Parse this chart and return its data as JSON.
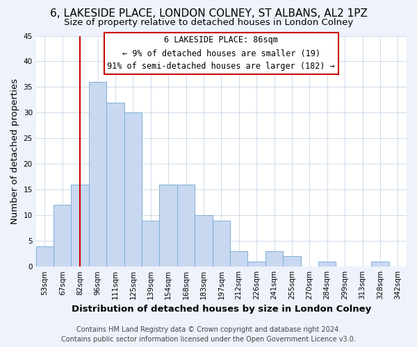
{
  "title": "6, LAKESIDE PLACE, LONDON COLNEY, ST ALBANS, AL2 1PZ",
  "subtitle": "Size of property relative to detached houses in London Colney",
  "xlabel": "Distribution of detached houses by size in London Colney",
  "ylabel": "Number of detached properties",
  "footer_lines": [
    "Contains HM Land Registry data © Crown copyright and database right 2024.",
    "Contains public sector information licensed under the Open Government Licence v3.0."
  ],
  "bin_labels": [
    "53sqm",
    "67sqm",
    "82sqm",
    "96sqm",
    "111sqm",
    "125sqm",
    "139sqm",
    "154sqm",
    "168sqm",
    "183sqm",
    "197sqm",
    "212sqm",
    "226sqm",
    "241sqm",
    "255sqm",
    "270sqm",
    "284sqm",
    "299sqm",
    "313sqm",
    "328sqm",
    "342sqm"
  ],
  "bar_heights": [
    4,
    12,
    16,
    36,
    32,
    30,
    9,
    16,
    16,
    10,
    9,
    3,
    1,
    3,
    2,
    0,
    1,
    0,
    0,
    1,
    0
  ],
  "bar_color": "#c8d8f0",
  "bar_edge_color": "#7bafd4",
  "vline_x_label": "82sqm",
  "vline_color": "#cc0000",
  "annotation_title": "6 LAKESIDE PLACE: 86sqm",
  "annotation_line1": "← 9% of detached houses are smaller (19)",
  "annotation_line2": "91% of semi-detached houses are larger (182) →",
  "annotation_box_color": "#ffffff",
  "annotation_box_edge": "#cc0000",
  "ylim": [
    0,
    45
  ],
  "yticks": [
    0,
    5,
    10,
    15,
    20,
    25,
    30,
    35,
    40,
    45
  ],
  "background_color": "#edf2fb",
  "plot_background_color": "#ffffff",
  "title_fontsize": 11,
  "subtitle_fontsize": 9.5,
  "axis_label_fontsize": 9.5,
  "tick_fontsize": 7.5,
  "annotation_fontsize": 8.5,
  "footer_fontsize": 7
}
